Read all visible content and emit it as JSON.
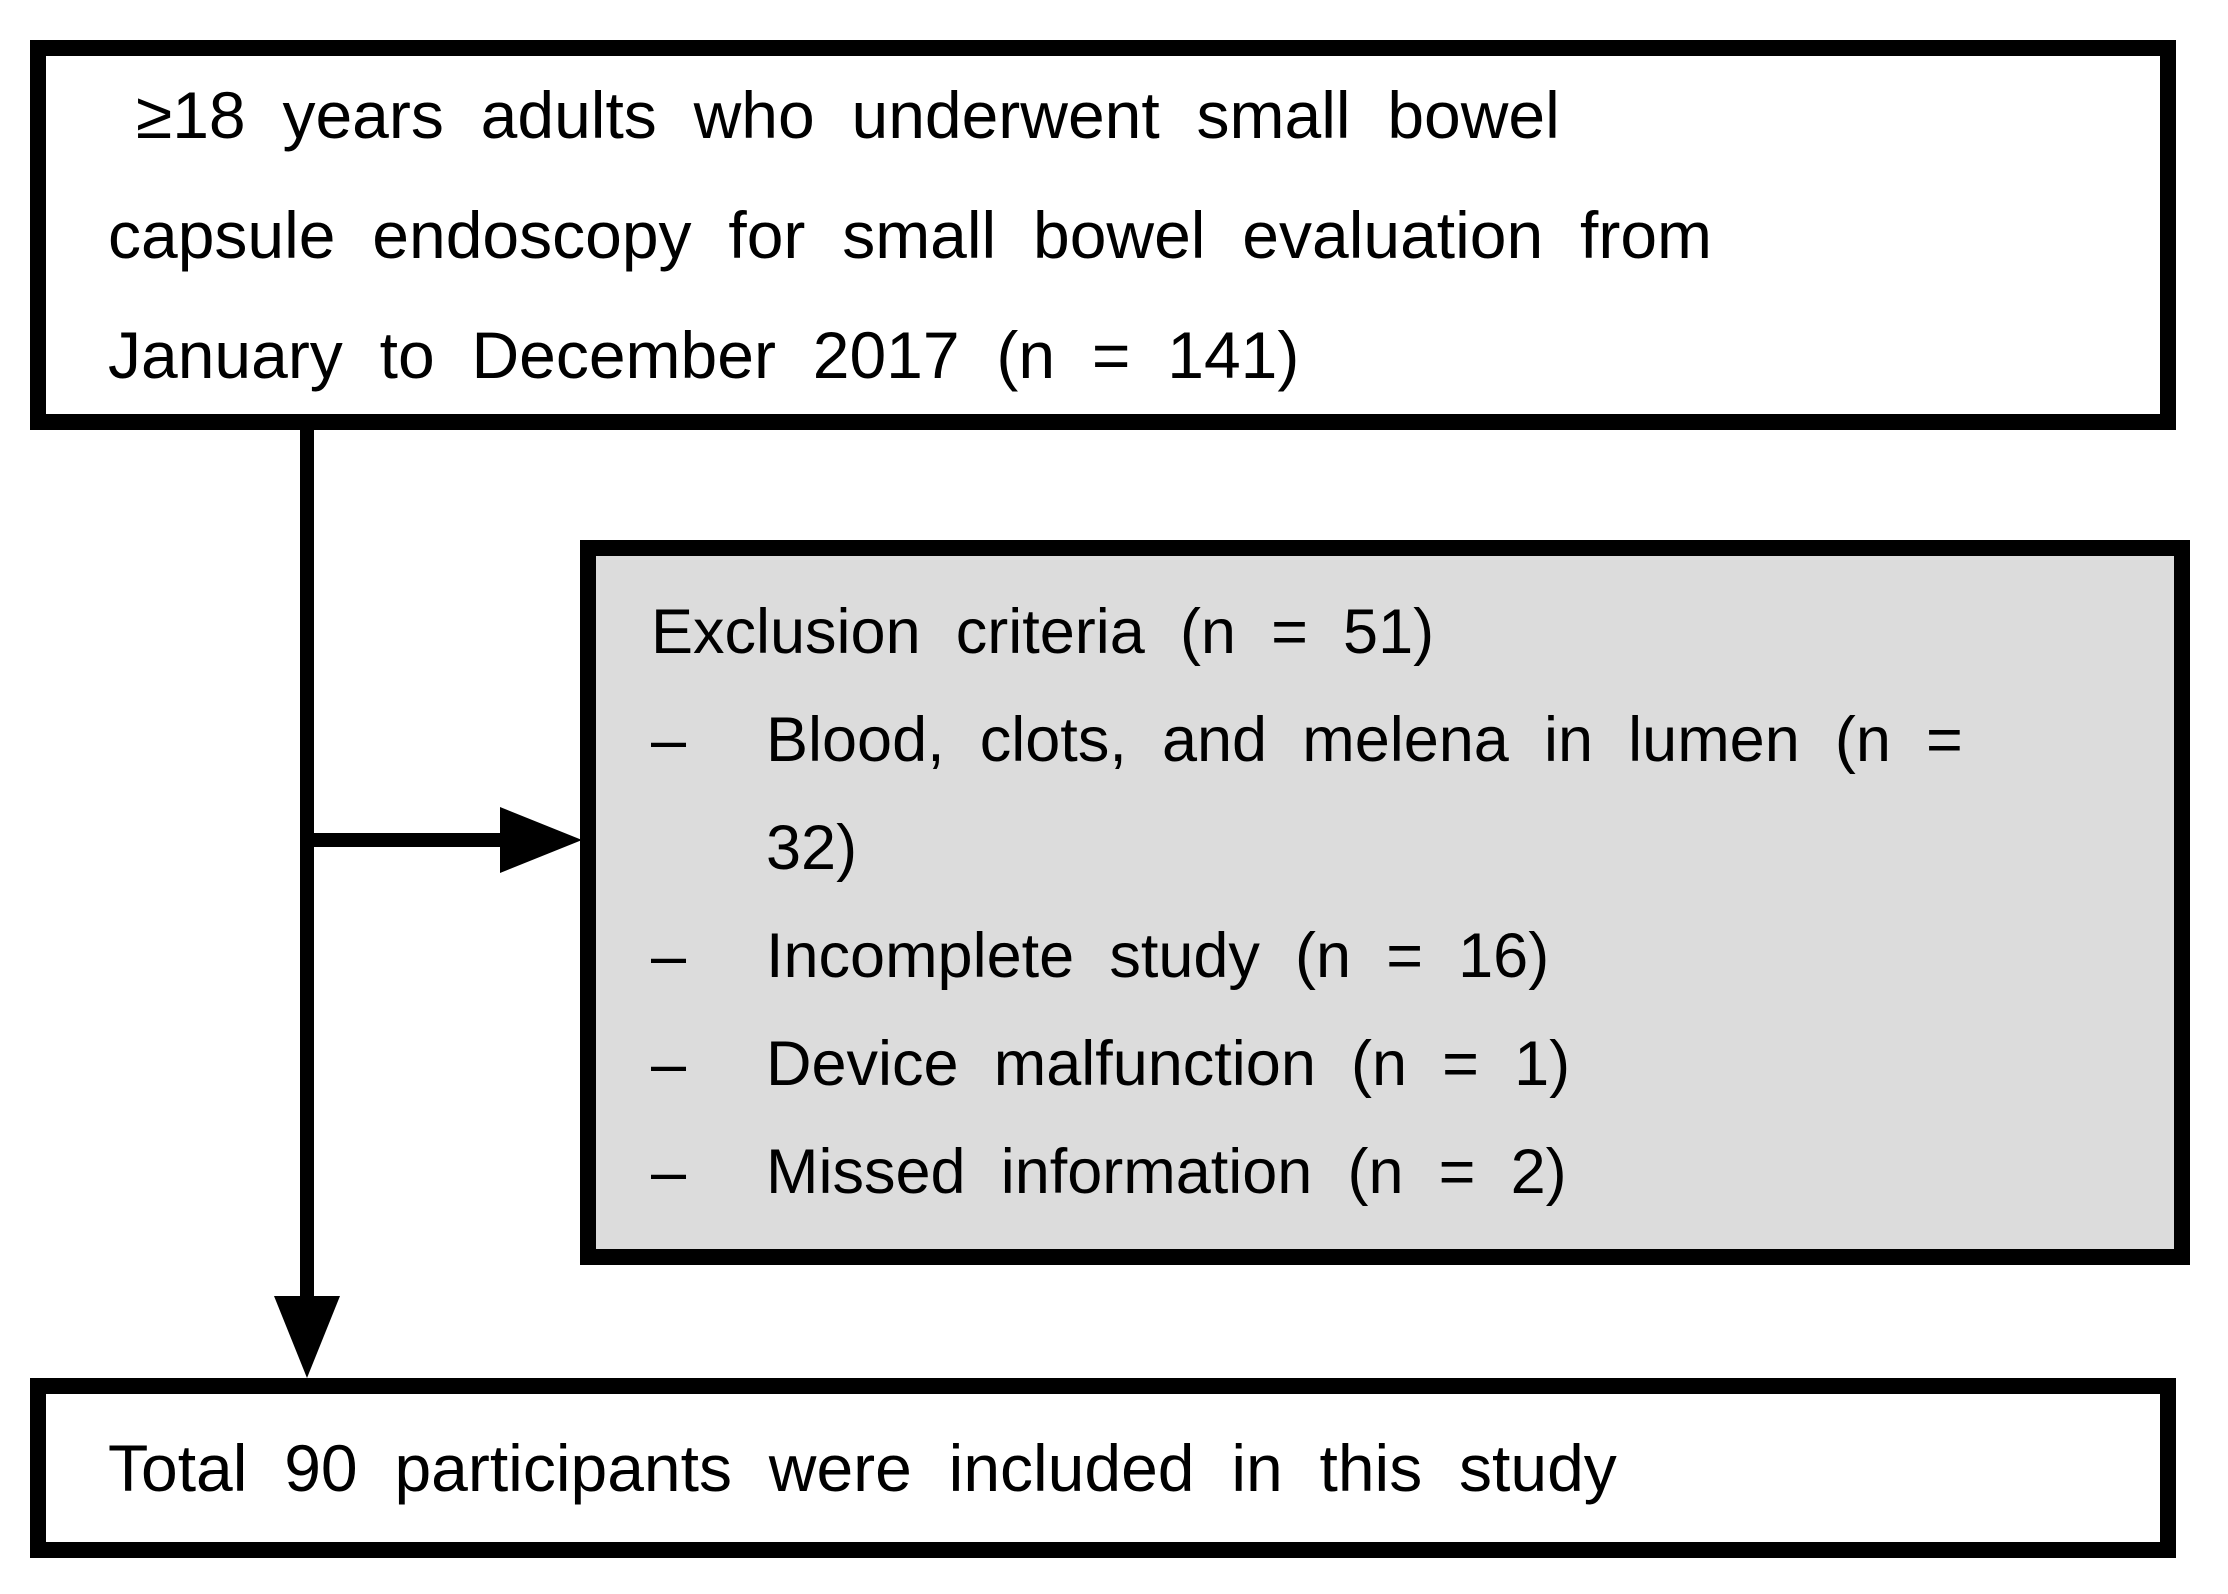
{
  "top_box": {
    "lines": [
      "≥18 years adults who underwent small bowel",
      "capsule endoscopy for small bowel evaluation from",
      "January to December 2017 (n = 141)"
    ]
  },
  "exclusion_box": {
    "title": "Exclusion criteria (n = 51)",
    "bullet": "–",
    "items": [
      "Blood, clots, and melena in lumen (n = 32)",
      "Incomplete study (n = 16)",
      "Device malfunction (n = 1)",
      "Missed information (n = 2)"
    ]
  },
  "bottom_box": {
    "text": "Total 90 participants were included in this study"
  },
  "colors": {
    "border": "#000000",
    "text": "#000000",
    "background": "#ffffff",
    "exclusion_fill": "#dcdcdc"
  }
}
